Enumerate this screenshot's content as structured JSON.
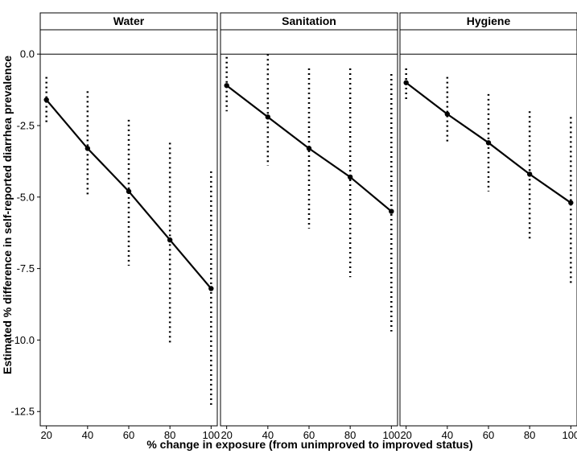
{
  "chart_data": {
    "type": "line",
    "facets": [
      "Water",
      "Sanitation",
      "Hygiene"
    ],
    "xlabel": "% change in exposure (from unimproved to improved status)",
    "ylabel": "Estimated % difference in self-reported diarrhea prevalence",
    "x": [
      20,
      40,
      60,
      80,
      100
    ],
    "x_ticks": [
      "20",
      "40",
      "60",
      "80",
      "100"
    ],
    "y_ticks": [
      0,
      -2.5,
      -5,
      -7.5,
      -10,
      -12.5
    ],
    "y_tick_labels": [
      "0.0",
      "-2.5",
      "-5.0",
      "-7.5",
      "-10.0",
      "-12.5"
    ],
    "ylim": [
      -13.0,
      0.85
    ],
    "xlim": [
      17,
      103
    ],
    "reference_line_y": 0,
    "panels": [
      {
        "name": "Water",
        "estimate": [
          -1.6,
          -3.3,
          -4.8,
          -6.5,
          -8.2
        ],
        "lower": [
          -2.4,
          -5.0,
          -7.4,
          -10.1,
          -12.3
        ],
        "upper": [
          -0.8,
          -1.3,
          -2.3,
          -3.1,
          -4.1
        ]
      },
      {
        "name": "Sanitation",
        "estimate": [
          -1.1,
          -2.2,
          -3.3,
          -4.3,
          -5.5
        ],
        "lower": [
          -2.0,
          -3.9,
          -6.1,
          -7.8,
          -9.7
        ],
        "upper": [
          -0.1,
          0.0,
          -0.5,
          -0.5,
          -0.7
        ]
      },
      {
        "name": "Hygiene",
        "estimate": [
          -1.0,
          -2.1,
          -3.1,
          -4.2,
          -5.2
        ],
        "lower": [
          -1.6,
          -3.1,
          -4.8,
          -6.5,
          -8.1
        ],
        "upper": [
          -0.5,
          -0.8,
          -1.4,
          -2.0,
          -2.2
        ]
      }
    ]
  }
}
